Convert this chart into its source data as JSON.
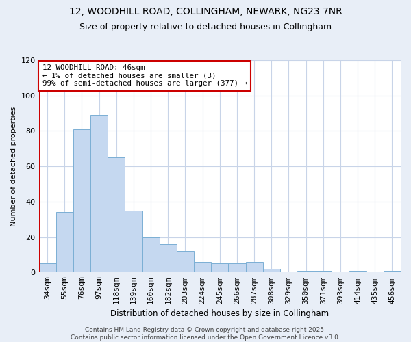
{
  "title_line1": "12, WOODHILL ROAD, COLLINGHAM, NEWARK, NG23 7NR",
  "title_line2": "Size of property relative to detached houses in Collingham",
  "xlabel": "Distribution of detached houses by size in Collingham",
  "ylabel": "Number of detached properties",
  "categories": [
    "34sqm",
    "55sqm",
    "76sqm",
    "97sqm",
    "118sqm",
    "139sqm",
    "160sqm",
    "182sqm",
    "203sqm",
    "224sqm",
    "245sqm",
    "266sqm",
    "287sqm",
    "308sqm",
    "329sqm",
    "350sqm",
    "371sqm",
    "393sqm",
    "414sqm",
    "435sqm",
    "456sqm"
  ],
  "values": [
    5,
    34,
    81,
    89,
    65,
    35,
    20,
    16,
    12,
    6,
    5,
    5,
    6,
    2,
    0,
    1,
    1,
    0,
    1,
    0,
    1
  ],
  "bar_color": "#c5d8f0",
  "bar_edge_color": "#7bafd4",
  "marker_color": "#cc0000",
  "ylim": [
    0,
    120
  ],
  "yticks": [
    0,
    20,
    40,
    60,
    80,
    100,
    120
  ],
  "annotation_title": "12 WOODHILL ROAD: 46sqm",
  "annotation_line2": "← 1% of detached houses are smaller (3)",
  "annotation_line3": "99% of semi-detached houses are larger (377) →",
  "footer_line1": "Contains HM Land Registry data © Crown copyright and database right 2025.",
  "footer_line2": "Contains public sector information licensed under the Open Government Licence v3.0.",
  "bg_color": "#e8eef7",
  "plot_bg_color": "#ffffff",
  "grid_color": "#c8d4e8",
  "title1_fontsize": 10,
  "title2_fontsize": 9,
  "ylabel_fontsize": 8,
  "xlabel_fontsize": 8.5,
  "tick_fontsize": 8,
  "ann_fontsize": 7.8,
  "footer_fontsize": 6.5
}
